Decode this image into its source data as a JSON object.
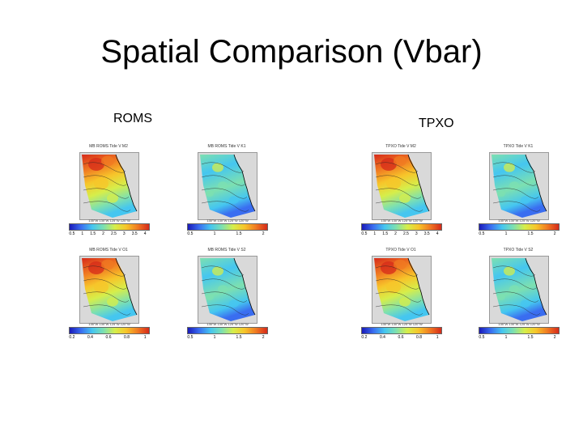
{
  "slide": {
    "title": "Spatial Comparison (Vbar)"
  },
  "groups": {
    "roms_label": "ROMS",
    "tpxo_label": "TPXO"
  },
  "colors": {
    "land": "#d9d9d9",
    "coast": "#000000",
    "colormap": [
      "#1a1ab8",
      "#3a6df0",
      "#45c6f0",
      "#7de0b0",
      "#d6ee4a",
      "#f7c52a",
      "#f07a22",
      "#d62a1a"
    ]
  },
  "panels": [
    {
      "id": "roms-m2",
      "title": "MB ROMS Tide V  M2",
      "colorbar_ticks": [
        "0.5",
        "1",
        "1.5",
        "2",
        "2.5",
        "3",
        "3.5",
        "4"
      ],
      "intensity": "high"
    },
    {
      "id": "roms-k1",
      "title": "MB ROMS Tide V  K1",
      "colorbar_ticks": [
        "0.5",
        "1",
        "1.5",
        "2"
      ],
      "intensity": "low"
    },
    {
      "id": "tpxo-m2",
      "title": "TPXO Tide V  M2",
      "colorbar_ticks": [
        "0.5",
        "1",
        "1.5",
        "2",
        "2.5",
        "3",
        "3.5",
        "4"
      ],
      "intensity": "high"
    },
    {
      "id": "tpxo-k1",
      "title": "TPXO Tide V  K1",
      "colorbar_ticks": [
        "0.5",
        "1",
        "1.5",
        "2"
      ],
      "intensity": "low"
    },
    {
      "id": "roms-o1",
      "title": "MB ROMS Tide V  O1",
      "colorbar_ticks": [
        "0.2",
        "0.4",
        "0.6",
        "0.8",
        "1"
      ],
      "intensity": "high"
    },
    {
      "id": "roms-s2",
      "title": "MB ROMS Tide V  S2",
      "colorbar_ticks": [
        "0.5",
        "1",
        "1.5",
        "2"
      ],
      "intensity": "low"
    },
    {
      "id": "tpxo-o1",
      "title": "TPXO Tide V  O1",
      "colorbar_ticks": [
        "0.2",
        "0.4",
        "0.6",
        "0.8",
        "1"
      ],
      "intensity": "high"
    },
    {
      "id": "tpxo-s2",
      "title": "TPXO Tide V  S2",
      "colorbar_ticks": [
        "0.5",
        "1",
        "1.5",
        "2"
      ],
      "intensity": "low"
    }
  ],
  "axes": {
    "lat_ticks": [
      "45°N",
      "40°N",
      "35°N",
      "30°N",
      "25°N"
    ],
    "lon_ticks": "135°W 130°W 125°W 120°W"
  }
}
